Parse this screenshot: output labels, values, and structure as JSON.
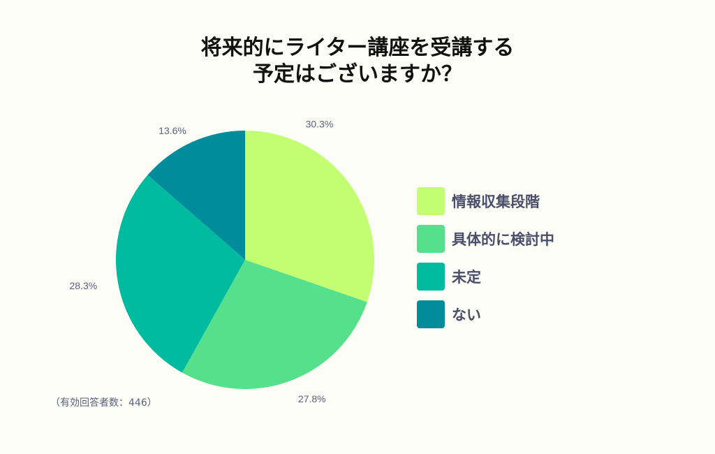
{
  "chart_data": {
    "type": "pie",
    "title_lines": [
      "将来的にライター講座を受講する",
      "予定はございますか？"
    ],
    "slices": [
      {
        "label": "情報収集段階",
        "value": 30.3,
        "display": "30.3%",
        "color": "#c3fd72"
      },
      {
        "label": "具体的に検討中",
        "value": 27.8,
        "display": "27.8%",
        "color": "#57e08c"
      },
      {
        "label": "未定",
        "value": 28.3,
        "display": "28.3%",
        "color": "#00bb9f"
      },
      {
        "label": "ない",
        "value": 13.6,
        "display": "13.6%",
        "color": "#008c9b"
      }
    ],
    "legend_position": "right",
    "note": "（有効回答者数：446）"
  }
}
